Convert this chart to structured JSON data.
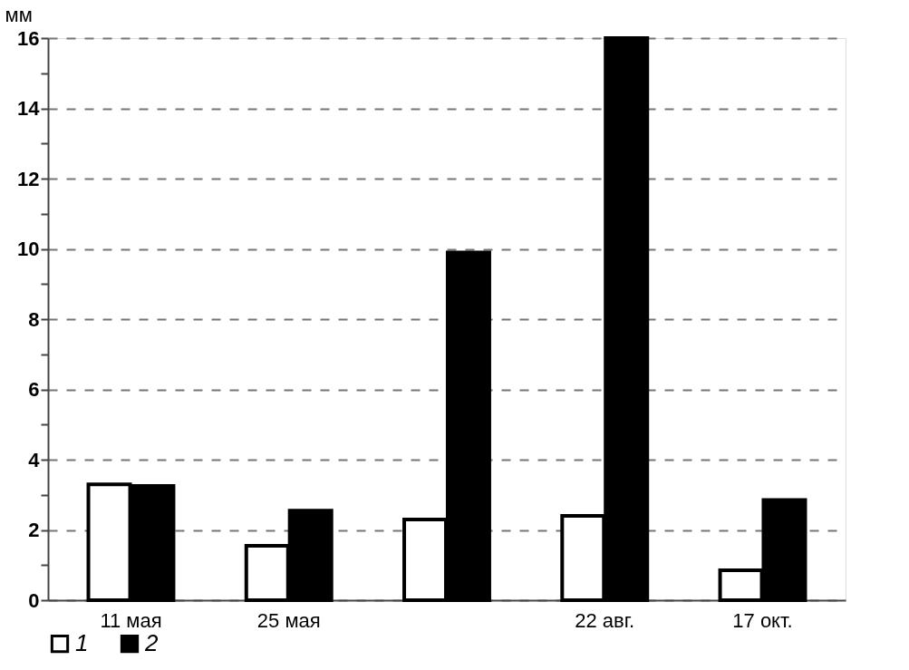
{
  "chart_data": {
    "type": "bar",
    "ylabel": "мм",
    "categories": [
      "11 мая",
      "25 мая",
      null,
      "22 авг.",
      "17 окт."
    ],
    "series": [
      {
        "name": "1",
        "color": "#ffffff",
        "values": [
          3.3,
          1.55,
          2.3,
          2.4,
          0.85
        ]
      },
      {
        "name": "2",
        "color": "#000000",
        "values": [
          3.25,
          2.55,
          9.9,
          16,
          2.85
        ]
      }
    ],
    "ylim": [
      0,
      16
    ],
    "yticks": [
      0,
      {
        "value": 1,
        "label": null
      },
      2,
      {
        "value": 3,
        "label": null
      },
      4,
      {
        "value": 5,
        "label": null
      },
      6,
      {
        "value": 7,
        "label": null
      },
      8,
      {
        "value": 9,
        "label": null
      },
      10,
      {
        "value": 11,
        "label": null
      },
      12,
      {
        "value": 13,
        "label": null
      },
      14,
      {
        "value": 15,
        "label": null
      },
      16
    ],
    "grid": "y",
    "legend": "bottom"
  }
}
